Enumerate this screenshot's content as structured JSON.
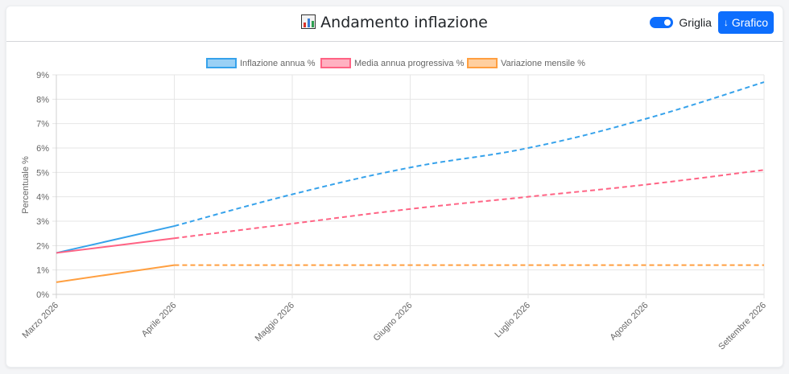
{
  "header": {
    "title": "Andamento inflazione",
    "title_icon": "bar-chart-icon",
    "grid_toggle_label": "Griglia",
    "grid_toggle_on": true,
    "download_button_label": "Grafico",
    "download_icon": "↓",
    "accent_color": "#0d6efd"
  },
  "chart_data": {
    "type": "line",
    "title": "",
    "xlabel": "",
    "ylabel": "Percentuale %",
    "ylim": [
      0,
      9
    ],
    "y_ticks": [
      "0%",
      "1%",
      "2%",
      "3%",
      "4%",
      "5%",
      "6%",
      "7%",
      "8%",
      "9%"
    ],
    "grid": true,
    "legend_position": "top",
    "categories": [
      "Marzo 2026",
      "Aprile 2026",
      "Maggio 2026",
      "Giugno 2026",
      "Luglio 2026",
      "Agosto 2026",
      "Settembre 2026"
    ],
    "solid_until_index": 1,
    "series": [
      {
        "name": "Inflazione annua %",
        "color": "#36a2eb",
        "fill": "#9ad0f5",
        "values": [
          1.7,
          2.8,
          4.1,
          5.2,
          6.0,
          7.2,
          8.7
        ]
      },
      {
        "name": "Media annua progressiva %",
        "color": "#ff6384",
        "fill": "#ffb1c1",
        "values": [
          1.7,
          2.3,
          2.9,
          3.5,
          4.0,
          4.5,
          5.1
        ]
      },
      {
        "name": "Variazione mensile %",
        "color": "#ff9f40",
        "fill": "#ffcf9f",
        "values": [
          0.5,
          1.2,
          1.2,
          1.2,
          1.2,
          1.2,
          1.2
        ]
      }
    ]
  }
}
